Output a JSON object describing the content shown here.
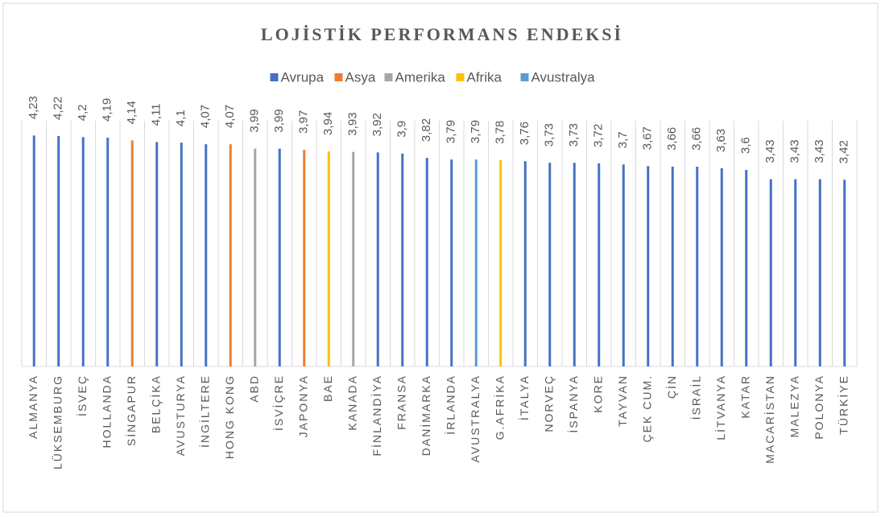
{
  "chart_data": {
    "type": "bar",
    "title": "LOJİSTİK PERFORMANS ENDEKSİ",
    "categories": [
      "ALMANYA",
      "LÜKSEMBURG",
      "İSVEÇ",
      "HOLLANDA",
      "SİNGAPUR",
      "BELÇİKA",
      "AVUSTURYA",
      "İNGİLTERE",
      "HONG KONG",
      "ABD",
      "İSVİÇRE",
      "JAPONYA",
      "BAE",
      "KANADA",
      "FİNLANDİYA",
      "FRANSA",
      "DANİMARKA",
      "İRLANDA",
      "AVUSTRALYA",
      "G.AFRİKA",
      "İTALYA",
      "NORVEÇ",
      "İSPANYA",
      "KORE",
      "TAYVAN",
      "ÇEK CUM.",
      "ÇİN",
      "İSRAİL",
      "LİTVANYA",
      "KATAR",
      "MACARİSTAN",
      "MALEZYA",
      "POLONYA",
      "TÜRKİYE"
    ],
    "series": [
      {
        "name": "Avrupa",
        "color": "#4472c4",
        "values": [
          4.23,
          4.22,
          4.2,
          4.19,
          null,
          4.11,
          4.1,
          4.07,
          null,
          null,
          3.99,
          null,
          null,
          null,
          3.92,
          3.9,
          3.82,
          3.79,
          null,
          null,
          3.76,
          3.73,
          3.73,
          3.72,
          3.7,
          3.67,
          3.66,
          3.66,
          3.63,
          3.6,
          3.43,
          3.43,
          3.43,
          3.42
        ],
        "value_labels": [
          "4,23",
          "4,22",
          "4,2",
          "4,19",
          null,
          "4,11",
          "4,1",
          "4,07",
          null,
          null,
          "3,99",
          null,
          null,
          null,
          "3,92",
          "3,9",
          "3,82",
          "3,79",
          null,
          null,
          "3,76",
          "3,73",
          "3,73",
          "3,72",
          "3,7",
          "3,67",
          "3,66",
          "3,66",
          "3,63",
          "3,6",
          "3,43",
          "3,43",
          "3,43",
          "3,42"
        ]
      },
      {
        "name": "Asya",
        "color": "#ed7d31",
        "values": [
          null,
          null,
          null,
          null,
          4.14,
          null,
          null,
          null,
          4.07,
          null,
          null,
          3.97,
          null,
          null,
          null,
          null,
          null,
          null,
          null,
          null,
          null,
          null,
          null,
          null,
          null,
          null,
          null,
          null,
          null,
          null,
          null,
          null,
          null,
          null
        ],
        "value_labels": [
          null,
          null,
          null,
          null,
          "4,14",
          null,
          null,
          null,
          "4,07",
          null,
          null,
          "3,97",
          null,
          null,
          null,
          null,
          null,
          null,
          null,
          null,
          null,
          null,
          null,
          null,
          null,
          null,
          null,
          null,
          null,
          null,
          null,
          null,
          null,
          null
        ]
      },
      {
        "name": "Amerika",
        "color": "#a5a5a5",
        "values": [
          null,
          null,
          null,
          null,
          null,
          null,
          null,
          null,
          null,
          3.99,
          null,
          null,
          null,
          3.93,
          null,
          null,
          null,
          null,
          null,
          null,
          null,
          null,
          null,
          null,
          null,
          null,
          null,
          null,
          null,
          null,
          null,
          null,
          null,
          null
        ],
        "value_labels": [
          null,
          null,
          null,
          null,
          null,
          null,
          null,
          null,
          null,
          "3,99",
          null,
          null,
          null,
          "3,93",
          null,
          null,
          null,
          null,
          null,
          null,
          null,
          null,
          null,
          null,
          null,
          null,
          null,
          null,
          null,
          null,
          null,
          null,
          null,
          null
        ]
      },
      {
        "name": "Afrika",
        "color": "#ffc000",
        "values": [
          null,
          null,
          null,
          null,
          null,
          null,
          null,
          null,
          null,
          null,
          null,
          null,
          3.94,
          null,
          null,
          null,
          null,
          null,
          null,
          3.78,
          null,
          null,
          null,
          null,
          null,
          null,
          null,
          null,
          null,
          null,
          null,
          null,
          null,
          null
        ],
        "value_labels": [
          null,
          null,
          null,
          null,
          null,
          null,
          null,
          null,
          null,
          null,
          null,
          null,
          "3,94",
          null,
          null,
          null,
          null,
          null,
          null,
          "3,78",
          null,
          null,
          null,
          null,
          null,
          null,
          null,
          null,
          null,
          null,
          null,
          null,
          null,
          null
        ]
      },
      {
        "name": "Avustralya",
        "color": "#5b9bd5",
        "values": [
          null,
          null,
          null,
          null,
          null,
          null,
          null,
          null,
          null,
          null,
          null,
          null,
          null,
          null,
          null,
          null,
          null,
          null,
          3.79,
          null,
          null,
          null,
          null,
          null,
          null,
          null,
          null,
          null,
          null,
          null,
          null,
          null,
          null,
          null
        ],
        "value_labels": [
          null,
          null,
          null,
          null,
          null,
          null,
          null,
          null,
          null,
          null,
          null,
          null,
          null,
          null,
          null,
          null,
          null,
          null,
          "3,79",
          null,
          null,
          null,
          null,
          null,
          null,
          null,
          null,
          null,
          null,
          null,
          null,
          null,
          null,
          null
        ]
      }
    ],
    "ylim": [
      0,
      4.5
    ]
  }
}
